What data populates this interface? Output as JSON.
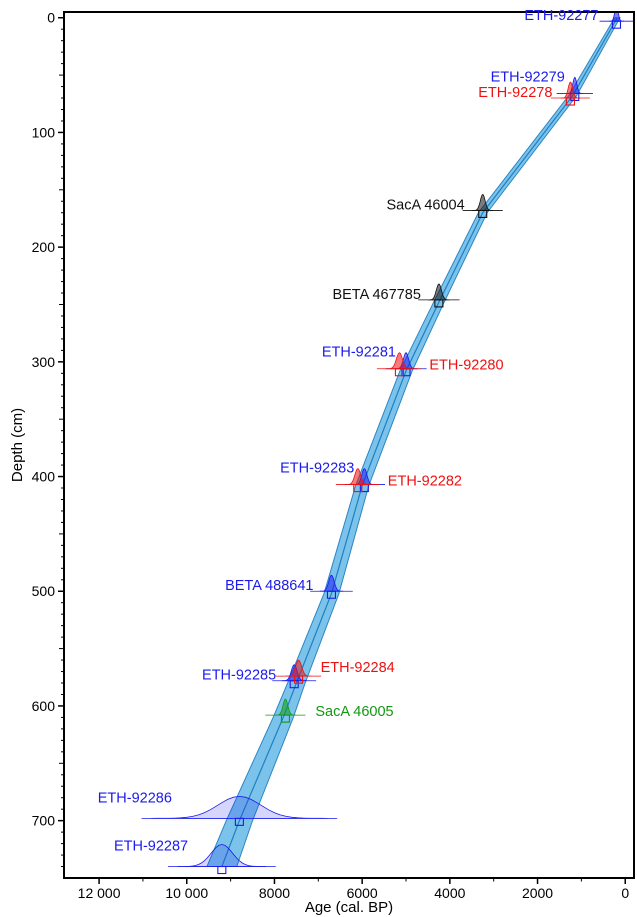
{
  "colors": {
    "blue": "#1a1aee",
    "red": "#ee1111",
    "black": "#111111",
    "green": "#119911",
    "envelope_fill": "#5ab4e6",
    "envelope_edge": "#2a86c6",
    "median_line": "#1f7fc0"
  },
  "chart_data": {
    "type": "scatter",
    "title": "",
    "xlabel": "Age (cal. BP)",
    "ylabel": "Depth (cm)",
    "x_reversed": true,
    "y_reversed": true,
    "xlim": [
      12800,
      -200
    ],
    "ylim": [
      -5,
      750
    ],
    "x_ticks": [
      12000,
      10000,
      8000,
      6000,
      4000,
      2000,
      0
    ],
    "x_tick_labels": [
      "12 000",
      "10 000",
      "8000",
      "6000",
      "4000",
      "2000",
      "0"
    ],
    "y_ticks": [
      0,
      100,
      200,
      300,
      400,
      500,
      600,
      700
    ],
    "y_tick_labels": [
      "0",
      "100",
      "200",
      "300",
      "400",
      "500",
      "600",
      "700"
    ],
    "grid": false,
    "age_model": {
      "depth": [
        0,
        68,
        170,
        248,
        308,
        408,
        502,
        580,
        610,
        700,
        740
      ],
      "age": [
        180,
        1200,
        3250,
        4250,
        5000,
        6000,
        6700,
        7500,
        7800,
        8800,
        9200
      ],
      "envelope_halfwidth": [
        60,
        90,
        100,
        120,
        140,
        150,
        170,
        200,
        230,
        300,
        340
      ]
    },
    "samples": [
      {
        "label": "ETH-92277",
        "color": "blue",
        "depth": 3,
        "age": 200,
        "spread": 110,
        "label_side": "left"
      },
      {
        "label": "ETH-92279",
        "color": "blue",
        "depth": 66,
        "age": 1150,
        "spread": 130,
        "label_side": "left-above"
      },
      {
        "label": "ETH-92278",
        "color": "red",
        "depth": 70,
        "age": 1250,
        "spread": 150,
        "label_side": "left"
      },
      {
        "label": "SacA 46004",
        "color": "black",
        "depth": 168,
        "age": 3250,
        "spread": 160,
        "label_side": "left"
      },
      {
        "label": "BETA 467785",
        "color": "black",
        "depth": 246,
        "age": 4250,
        "spread": 170,
        "label_side": "left"
      },
      {
        "label": "ETH-92281",
        "color": "blue",
        "depth": 306,
        "age": 5000,
        "spread": 170,
        "label_side": "left-above"
      },
      {
        "label": "ETH-92280",
        "color": "red",
        "depth": 306,
        "age": 5150,
        "spread": 200,
        "label_side": "right"
      },
      {
        "label": "ETH-92283",
        "color": "blue",
        "depth": 407,
        "age": 5950,
        "spread": 170,
        "label_side": "left-above"
      },
      {
        "label": "ETH-92282",
        "color": "red",
        "depth": 407,
        "age": 6100,
        "spread": 190,
        "label_side": "right"
      },
      {
        "label": "BETA 488641",
        "color": "blue",
        "depth": 500,
        "age": 6700,
        "spread": 180,
        "label_side": "left"
      },
      {
        "label": "ETH-92285",
        "color": "blue",
        "depth": 578,
        "age": 7550,
        "spread": 190,
        "label_side": "left"
      },
      {
        "label": "ETH-92284",
        "color": "red",
        "depth": 574,
        "age": 7450,
        "spread": 200,
        "label_side": "right-above"
      },
      {
        "label": "SacA 46005",
        "color": "green",
        "depth": 608,
        "age": 7750,
        "spread": 160,
        "label_side": "right"
      },
      {
        "label": "ETH-92286",
        "color": "blue",
        "depth": 698,
        "age": 8800,
        "spread": 1400,
        "label_side": "left-above"
      },
      {
        "label": "ETH-92287",
        "color": "blue",
        "depth": 740,
        "age": 9200,
        "spread": 700,
        "label_side": "left-above"
      }
    ]
  }
}
